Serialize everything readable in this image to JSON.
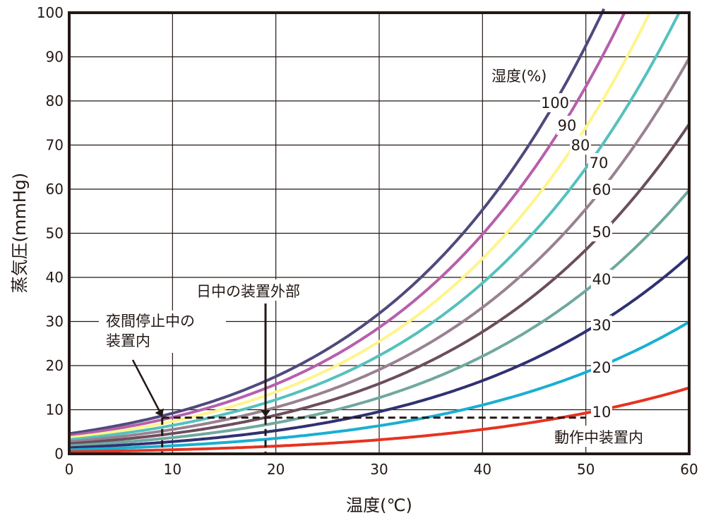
{
  "chart_data": {
    "type": "line",
    "title": "",
    "xlabel": "温度(℃)",
    "ylabel": "蒸気圧(mmHg)",
    "xlim": [
      0,
      60
    ],
    "ylim": [
      0,
      100
    ],
    "xticks": [
      0,
      10,
      20,
      30,
      40,
      50,
      60
    ],
    "yticks": [
      0,
      10,
      20,
      30,
      40,
      50,
      60,
      70,
      80,
      90,
      100
    ],
    "grid": true,
    "legend_title": "湿度(%)",
    "series": [
      {
        "name": "100",
        "rh": 100,
        "color": "#4f4a7c"
      },
      {
        "name": "90",
        "rh": 90,
        "color": "#b75fab"
      },
      {
        "name": "80",
        "rh": 80,
        "color": "#fff48c"
      },
      {
        "name": "70",
        "rh": 70,
        "color": "#55c1bd"
      },
      {
        "name": "60",
        "rh": 60,
        "color": "#998191"
      },
      {
        "name": "50",
        "rh": 50,
        "color": "#6b4e5d"
      },
      {
        "name": "40",
        "rh": 40,
        "color": "#70a89f"
      },
      {
        "name": "30",
        "rh": 30,
        "color": "#2f3171"
      },
      {
        "name": "20",
        "rh": 20,
        "color": "#19afd2"
      },
      {
        "name": "10",
        "rh": 10,
        "color": "#e6331f"
      }
    ],
    "reference": {
      "dashed_level_mmHg": 8.2,
      "dashed_x_range": [
        9,
        50
      ],
      "night_x": 9,
      "day_x": 19
    },
    "annotations": {
      "night": [
        "夜間停止中の",
        "装置内"
      ],
      "day": "日中の装置外部",
      "operating": "動作中装置内"
    }
  }
}
